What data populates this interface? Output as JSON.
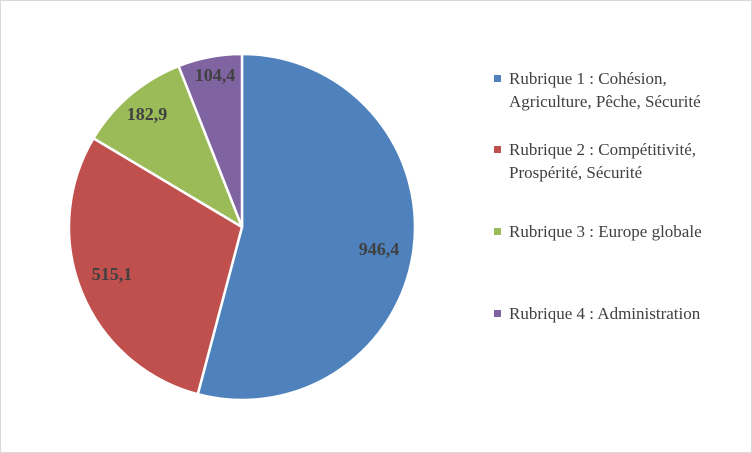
{
  "chart_data": {
    "type": "pie",
    "title": "",
    "categories": [
      "Rubrique 1 : Cohésion, Agriculture, Pêche, Sécurité",
      "Rubrique 2 : Compétitivité, Prospérité, Sécurité",
      "Rubrique 3 : Europe globale",
      "Rubrique 4 : Administration"
    ],
    "values": [
      946.4,
      515.1,
      182.9,
      104.4
    ],
    "data_labels": [
      "946,4",
      "515,1",
      "182,9",
      "104,4"
    ],
    "colors": [
      "#4f81bd",
      "#c0504d",
      "#9bbb59",
      "#8064a2"
    ],
    "legend_position": "right",
    "start_angle": "12 o'clock, clockwise"
  },
  "legend": {
    "items": [
      {
        "label": "Rubrique 1 : Cohésion, Agriculture, Pêche, Sécurité",
        "color": "#4f81bd"
      },
      {
        "label": "Rubrique 2 : Compétitivité, Prospérité, Sécurité",
        "color": "#c0504d"
      },
      {
        "label": "Rubrique 3 : Europe globale",
        "color": "#9bbb59"
      },
      {
        "label": "Rubrique 4 : Administration",
        "color": "#8064a2"
      }
    ]
  }
}
